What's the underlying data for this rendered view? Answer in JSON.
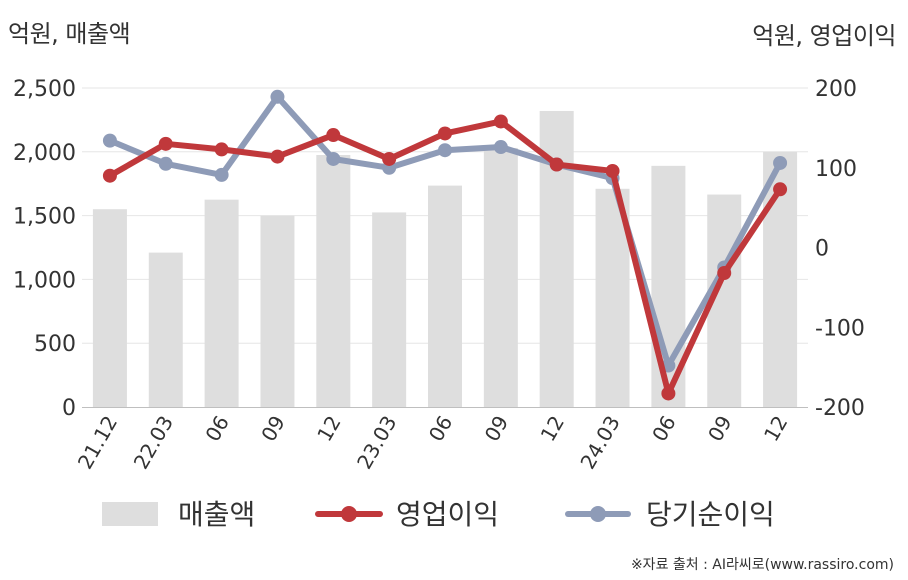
{
  "left_axis_label": "억원, 매출액",
  "right_axis_label": "억원, 영업이익",
  "source": "※자료 출처 : AI라씨로(www.rassiro.com)",
  "colors": {
    "revenue_bar": "#dedede",
    "operating_profit": "#c0383b",
    "net_income": "#8e9bb7",
    "grid": "#e6e6e6",
    "axis": "#bfbfbf",
    "text": "#333333"
  },
  "chart_data": {
    "type": "bar",
    "categories": [
      "21.12",
      "22.03",
      "06",
      "09",
      "12",
      "23.03",
      "06",
      "09",
      "12",
      "24.03",
      "06",
      "09",
      "12"
    ],
    "y_left": {
      "ylim": [
        0,
        2500
      ],
      "ticks": [
        0,
        500,
        1000,
        1500,
        2000,
        2500
      ],
      "tick_labels": [
        "0",
        "500",
        "1,000",
        "1,500",
        "2,000",
        "2,500"
      ]
    },
    "y_right": {
      "ylim": [
        -200,
        200
      ],
      "ticks": [
        -200,
        -100,
        0,
        100,
        200
      ],
      "tick_labels": [
        "-200",
        "-100",
        "0",
        "100",
        "200"
      ]
    },
    "series": [
      {
        "name": "매출액",
        "type": "bar",
        "axis": "left",
        "values": [
          1550,
          1210,
          1625,
          1500,
          1975,
          1525,
          1735,
          2030,
          2320,
          1710,
          1890,
          1665,
          2000
        ]
      },
      {
        "name": "영업이익",
        "type": "line",
        "axis": "right",
        "values": [
          90,
          130,
          123,
          114,
          141,
          111,
          143,
          158,
          104,
          96,
          -183,
          -32,
          73
        ]
      },
      {
        "name": "당기순이익",
        "type": "line",
        "axis": "right",
        "values": [
          134,
          105,
          91,
          189,
          111,
          100,
          122,
          126,
          104,
          87,
          -148,
          -25,
          106
        ]
      }
    ],
    "grid": true,
    "legend_position": "bottom"
  }
}
